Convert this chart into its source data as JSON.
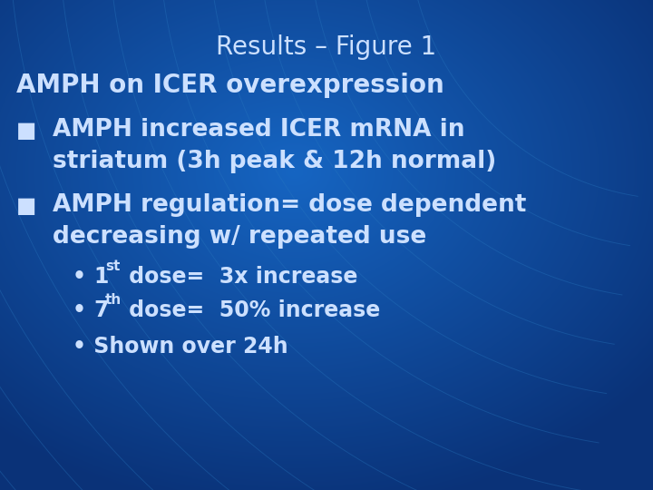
{
  "title": "Results – Figure 1",
  "subtitle": "AMPH on ICER overexpression",
  "bullet_marker": "■",
  "bullet1_line1": "AMPH increased ICER mRNA in",
  "bullet1_line2": "striatum (3h peak & 12h normal)",
  "bullet2_line1": "AMPH regulation= dose dependent",
  "bullet2_line2": "decreasing w/ repeated use",
  "sub_bullet1_num": "1",
  "sub_bullet1_sup": "st",
  "sub_bullet1_rest": " dose=  3x increase",
  "sub_bullet2_num": "7",
  "sub_bullet2_sup": "th",
  "sub_bullet2_rest": " dose=  50% increase",
  "sub_bullet3": "Shown over 24h",
  "bg_color": "#1565c0",
  "bg_dark": "#0d47a1",
  "arc_color": "#1976d2",
  "text_color": "#cce0ff",
  "title_fontsize": 20,
  "subtitle_fontsize": 20,
  "bullet_fontsize": 19,
  "sub_bullet_fontsize": 17
}
